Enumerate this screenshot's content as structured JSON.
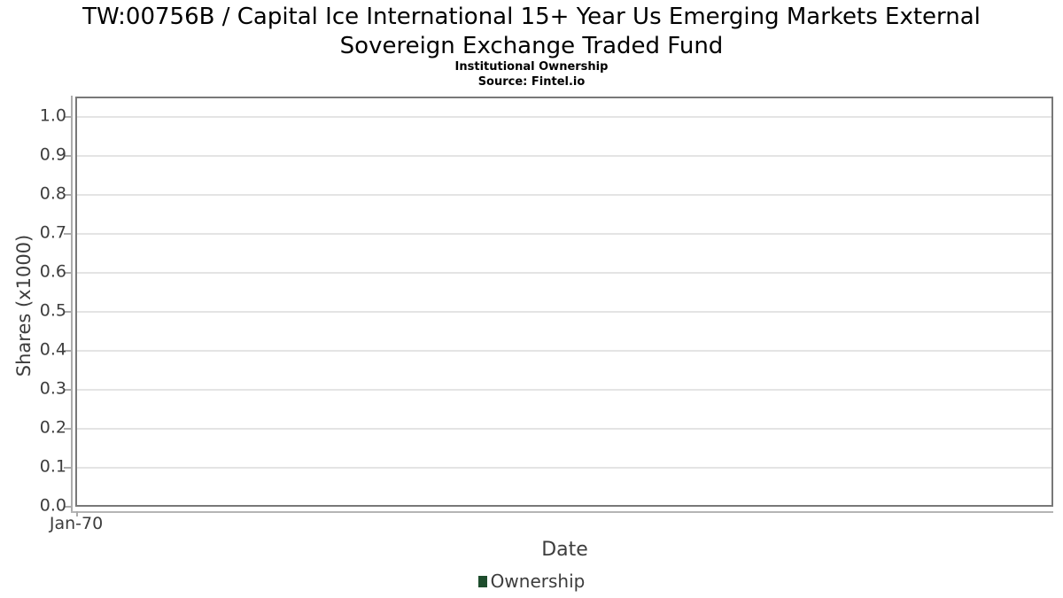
{
  "header": {
    "title_line1": "TW:00756B / Capital Ice International 15+ Year Us Emerging Markets External",
    "title_line2": "Sovereign Exchange Traded Fund",
    "subtitle": "Institutional Ownership",
    "source": "Source: Fintel.io"
  },
  "axes": {
    "y_label": "Shares (x1000)",
    "x_label": "Date",
    "y_ticks": [
      "1.0",
      "0.9",
      "0.8",
      "0.7",
      "0.6",
      "0.5",
      "0.4",
      "0.3",
      "0.2",
      "0.1",
      "0.0"
    ],
    "x_ticks": [
      "Jan-70"
    ]
  },
  "legend": {
    "label": "Ownership",
    "marker_color": "#1e4d2d"
  },
  "colors": {
    "plot_border": "#787878",
    "gridline": "#e4e4e4",
    "axis_line": "#ababab",
    "tick_text": "#3d3d3d",
    "title_text": "#000000"
  },
  "chart_data": {
    "type": "bar",
    "title": "TW:00756B / Capital Ice International 15+ Year Us Emerging Markets External Sovereign Exchange Traded Fund",
    "subtitle": "Institutional Ownership",
    "source": "Source: Fintel.io",
    "xlabel": "Date",
    "ylabel": "Shares (x1000)",
    "categories": [
      "Jan-70"
    ],
    "series": [
      {
        "name": "Ownership",
        "values": [],
        "color": "#1e4d2d"
      }
    ],
    "yticks": [
      0.0,
      0.1,
      0.2,
      0.3,
      0.4,
      0.5,
      0.6,
      0.7,
      0.8,
      0.9,
      1.0
    ],
    "ylim": [
      0.0,
      1.05
    ],
    "grid": "horizontal-only",
    "legend_position": "bottom-center",
    "plot_empty": true
  }
}
